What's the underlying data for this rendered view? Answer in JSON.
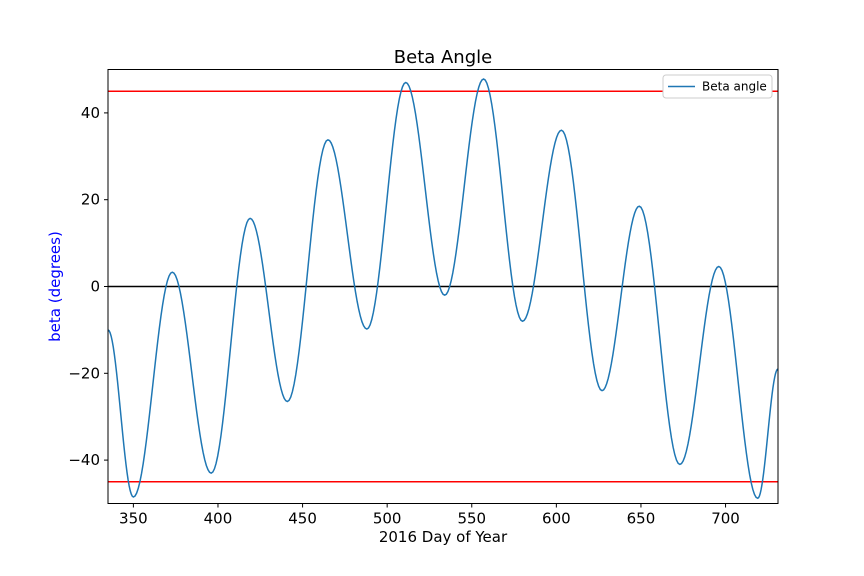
{
  "chart_data": {
    "type": "line",
    "title": "Beta Angle",
    "xlabel": "2016 Day of Year",
    "ylabel": "beta (degrees)",
    "ylabel_color": "#0000ff",
    "xlim": [
      335,
      731
    ],
    "ylim": [
      -50,
      50
    ],
    "x_ticks": [
      350,
      400,
      450,
      500,
      550,
      600,
      650,
      700
    ],
    "x_tick_labels": [
      "350",
      "400",
      "450",
      "500",
      "550",
      "600",
      "650",
      "700"
    ],
    "y_ticks": [
      -40,
      -20,
      0,
      20,
      40
    ],
    "y_tick_labels": [
      "−40",
      "−20",
      "0",
      "20",
      "40"
    ],
    "grid": false,
    "legend": {
      "position": "top-right",
      "entries": [
        "Beta angle"
      ]
    },
    "series": [
      {
        "name": "Beta angle",
        "color": "#1f77b4",
        "x": [
          335,
          350,
          373,
          396,
          419,
          441,
          465,
          488,
          511,
          534,
          557,
          580,
          603,
          627,
          649,
          673,
          696,
          719,
          731
        ],
        "y": [
          -10,
          -48.5,
          3.3,
          -43,
          15.7,
          -26.5,
          33.8,
          -9.8,
          47,
          -2,
          47.8,
          -8,
          36,
          -24,
          18.5,
          -41,
          4.6,
          -48.8,
          -19
        ]
      }
    ],
    "reference_lines": [
      {
        "y": 45,
        "color": "#ff0000"
      },
      {
        "y": -45,
        "color": "#ff0000"
      },
      {
        "y": 0,
        "color": "#000000"
      }
    ]
  }
}
